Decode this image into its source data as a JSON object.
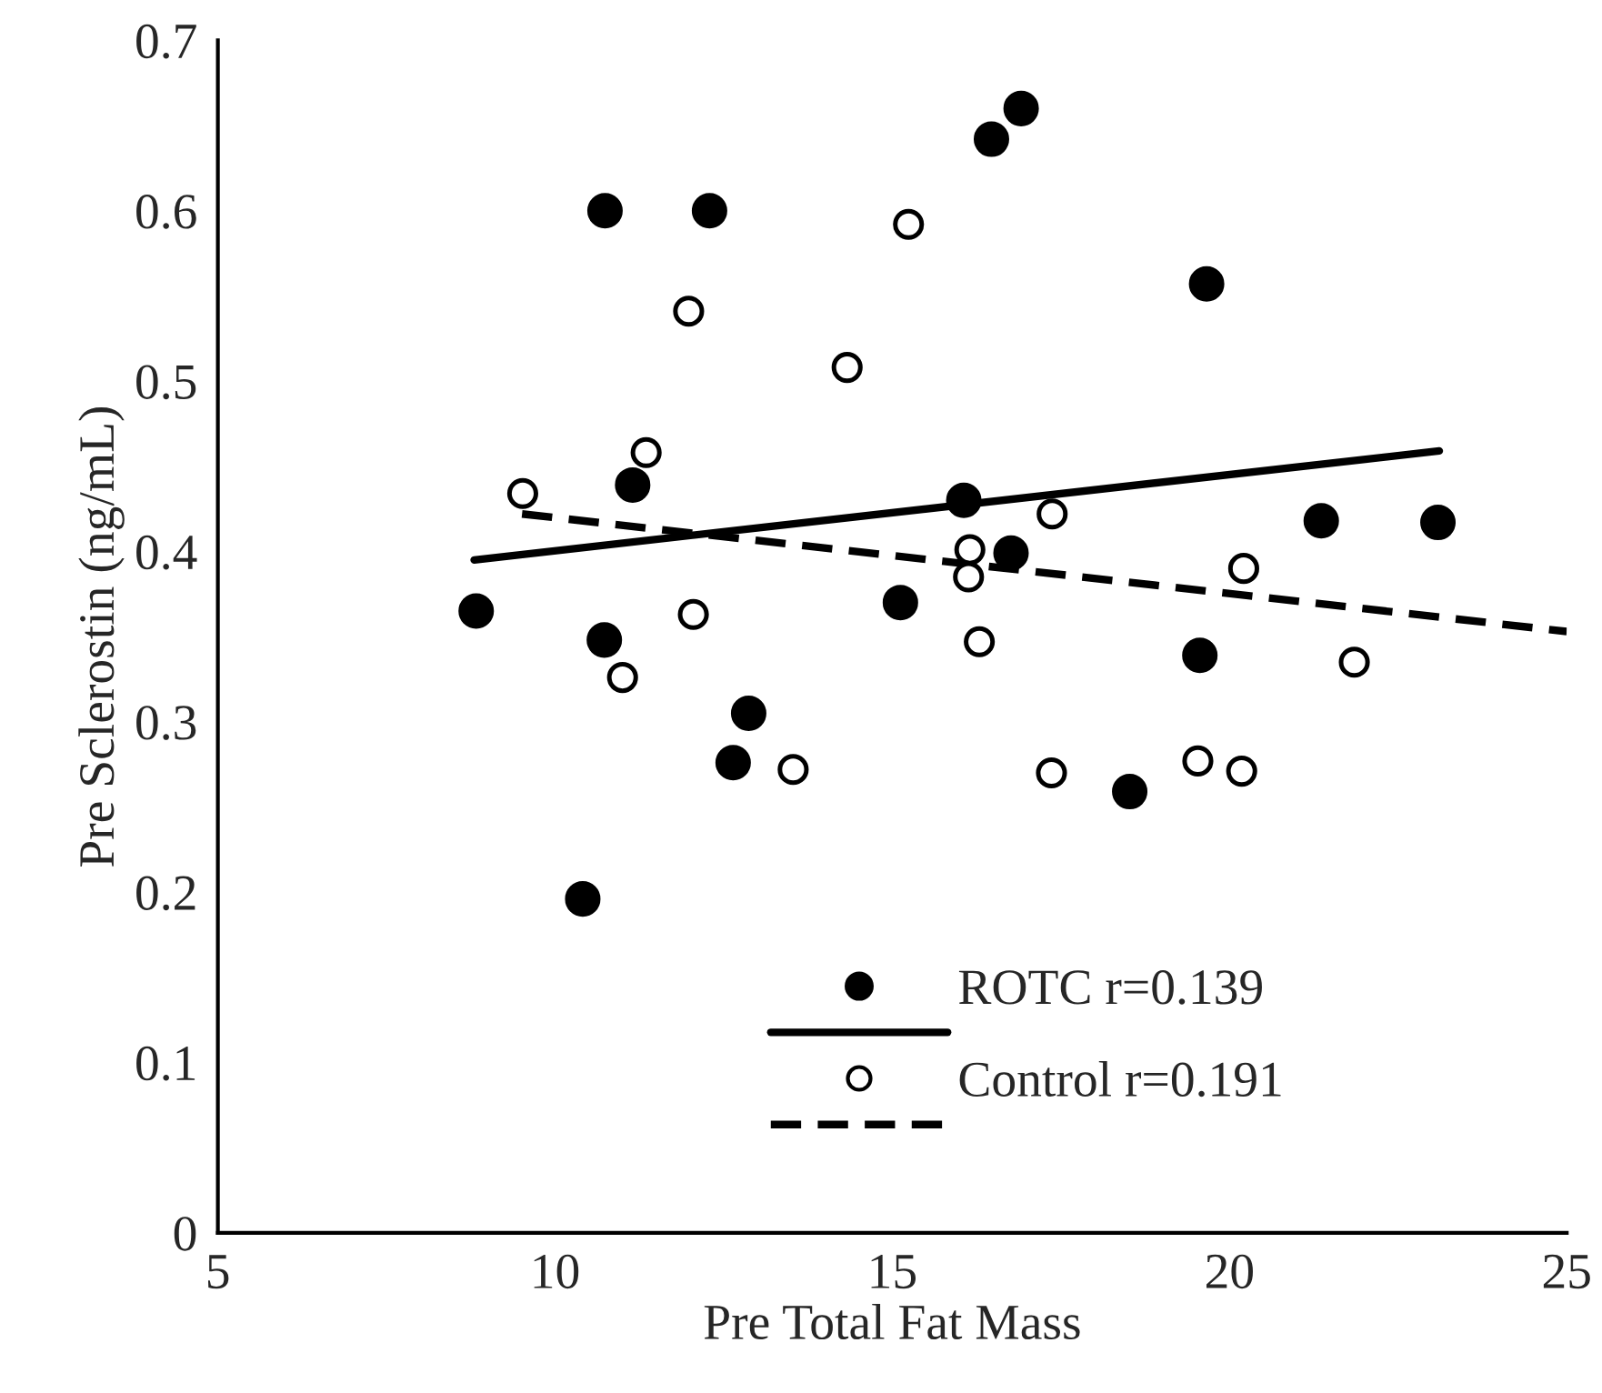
{
  "chart_data": {
    "type": "scatter",
    "xlabel": "Pre Total Fat Mass",
    "ylabel": "Pre Sclerostin (ng/mL)",
    "xlim": [
      5,
      25
    ],
    "xticks": [
      5,
      10,
      15,
      20,
      25
    ],
    "ylim": [
      0,
      0.7
    ],
    "yticks": [
      0,
      0.1,
      0.2,
      0.3,
      0.4,
      0.5,
      0.6,
      0.7
    ],
    "grid": false,
    "legend": "bottom",
    "series": [
      {
        "name": "ROTC r=0.139",
        "color": "#000000",
        "marker": "circle",
        "x": [
          8.83,
          10.74,
          12.29,
          11.15,
          10.73,
          12.87,
          12.64,
          10.41,
          15.12,
          16.91,
          16.47,
          19.66,
          16.06,
          16.76,
          21.36,
          23.09,
          19.56,
          18.52
        ],
        "values": [
          0.365,
          0.6,
          0.6,
          0.439,
          0.348,
          0.305,
          0.276,
          0.196,
          0.37,
          0.66,
          0.642,
          0.557,
          0.43,
          0.399,
          0.418,
          0.417,
          0.339,
          0.259
        ]
      },
      {
        "type": "line",
        "color": "#000000",
        "line_style": "solid",
        "marker": "none",
        "x": [
          8.8,
          23.11
        ],
        "values": [
          0.395,
          0.459
        ]
      },
      {
        "name": "Control r=0.191",
        "color": "#ffffff",
        "marker": "circle",
        "x": [
          9.52,
          11.35,
          11.98,
          14.33,
          15.24,
          12.05,
          11.0,
          13.53,
          17.37,
          16.15,
          16.13,
          20.21,
          16.29,
          21.85,
          17.36,
          19.53,
          20.18
        ],
        "values": [
          0.434,
          0.458,
          0.541,
          0.508,
          0.592,
          0.363,
          0.326,
          0.272,
          0.422,
          0.401,
          0.385,
          0.39,
          0.347,
          0.335,
          0.27,
          0.277,
          0.271
        ]
      },
      {
        "type": "line",
        "color": "#000000",
        "line_style": "dashed",
        "marker": "none",
        "x": [
          9.51,
          25
        ],
        "values": [
          0.422,
          0.353
        ]
      }
    ]
  }
}
